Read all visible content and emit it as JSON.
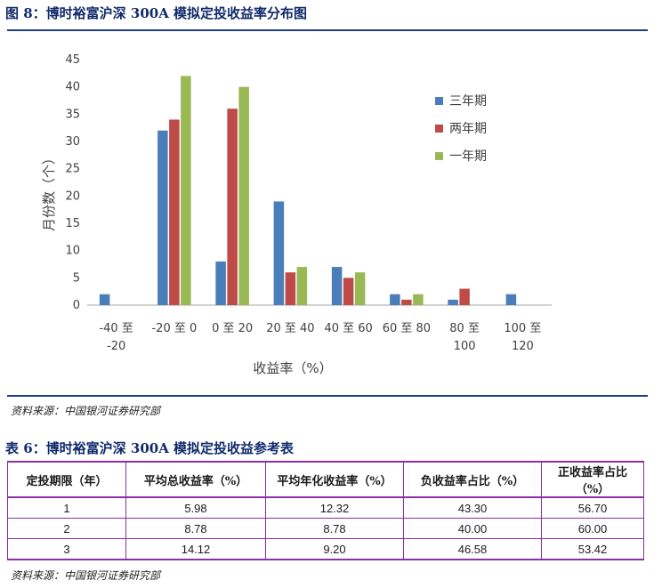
{
  "figure": {
    "title": "图 8：博时裕富沪深 300A 模拟定投收益率分布图",
    "source": "资料来源：中国银河证券研究部"
  },
  "chart_data": {
    "type": "bar",
    "title": "",
    "xlabel": "收益率（%）",
    "ylabel": "月份数（个）",
    "ylim": [
      0,
      45
    ],
    "yticks": [
      0,
      5,
      10,
      15,
      20,
      25,
      30,
      35,
      40,
      45
    ],
    "categories": [
      [
        "-40 至",
        "-20"
      ],
      [
        "-20 至 0"
      ],
      [
        "0 至 20"
      ],
      [
        "20 至 40"
      ],
      [
        "40 至 60"
      ],
      [
        "60 至 80"
      ],
      [
        "80 至",
        "100"
      ],
      [
        "100 至",
        "120"
      ]
    ],
    "series": [
      {
        "name": "三年期",
        "color": "#4a7ebb",
        "values": [
          2,
          32,
          8,
          19,
          7,
          2,
          1,
          2
        ]
      },
      {
        "name": "两年期",
        "color": "#be4b48",
        "values": [
          0,
          34,
          36,
          6,
          5,
          1,
          3,
          0
        ]
      },
      {
        "name": "一年期",
        "color": "#98b954",
        "values": [
          0,
          42,
          40,
          7,
          6,
          2,
          0,
          0
        ]
      }
    ],
    "legend_position": "top-right",
    "grid": false
  },
  "table": {
    "title": "表 6：博时裕富沪深 300A 模拟定投收益参考表",
    "headers": [
      "定投期限（年）",
      "平均总收益率（%）",
      "平均年化收益率（%）",
      "负收益率占比（%）",
      "正收益率占比（%）"
    ],
    "rows": [
      [
        "1",
        "5.98",
        "12.32",
        "43.30",
        "56.70"
      ],
      [
        "2",
        "8.78",
        "8.78",
        "40.00",
        "60.00"
      ],
      [
        "3",
        "14.12",
        "9.20",
        "46.58",
        "53.42"
      ]
    ],
    "source": "资料来源：中国银河证券研究部"
  }
}
